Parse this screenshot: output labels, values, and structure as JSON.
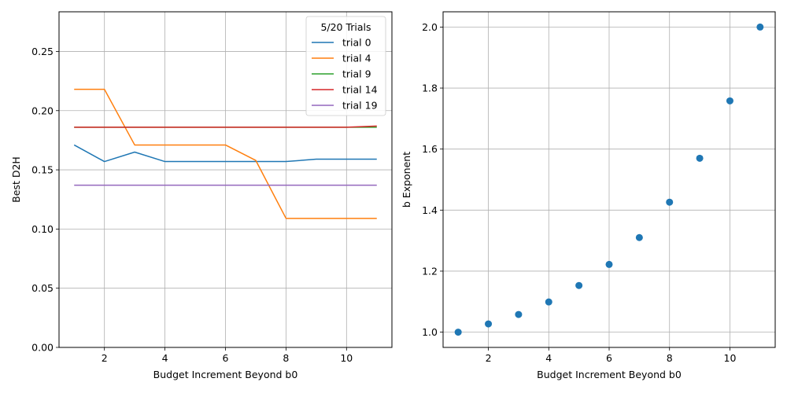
{
  "chart_data": [
    {
      "type": "line",
      "xlabel": "Budget Increment Beyond b0",
      "ylabel": "Best D2H",
      "xlim": [
        0.5,
        11.5
      ],
      "ylim": [
        0.0,
        0.2835
      ],
      "xticks": [
        2,
        4,
        6,
        8,
        10
      ],
      "yticks": [
        0.0,
        0.05,
        0.1,
        0.15,
        0.2,
        0.25
      ],
      "ytick_labels": [
        "0.00",
        "0.05",
        "0.10",
        "0.15",
        "0.20",
        "0.25"
      ],
      "grid": true,
      "legend": {
        "title": "5/20 Trials",
        "placement": "top-right"
      },
      "x": [
        1,
        2,
        3,
        4,
        5,
        6,
        7,
        8,
        9,
        10,
        11
      ],
      "series": [
        {
          "name": "trial 0",
          "color": "#1f77b4",
          "values": [
            0.171,
            0.157,
            0.165,
            0.157,
            0.157,
            0.157,
            0.157,
            0.157,
            0.159,
            0.159,
            0.159
          ]
        },
        {
          "name": "trial 4",
          "color": "#ff7f0e",
          "values": [
            0.218,
            0.218,
            0.171,
            0.171,
            0.171,
            0.171,
            0.158,
            0.109,
            0.109,
            0.109,
            0.109
          ]
        },
        {
          "name": "trial 9",
          "color": "#2ca02c",
          "values": [
            0.186,
            0.186,
            0.186,
            0.186,
            0.186,
            0.186,
            0.186,
            0.186,
            0.186,
            0.186,
            0.186
          ]
        },
        {
          "name": "trial 14",
          "color": "#d62728",
          "values": [
            0.186,
            0.186,
            0.186,
            0.186,
            0.186,
            0.186,
            0.186,
            0.186,
            0.186,
            0.186,
            0.187
          ]
        },
        {
          "name": "trial 19",
          "color": "#9467bd",
          "values": [
            0.137,
            0.137,
            0.137,
            0.137,
            0.137,
            0.137,
            0.137,
            0.137,
            0.137,
            0.137,
            0.137
          ]
        }
      ]
    },
    {
      "type": "scatter",
      "xlabel": "Budget Increment Beyond b0",
      "ylabel": "b Exponent",
      "xlim": [
        0.5,
        11.5
      ],
      "ylim": [
        0.95,
        2.05
      ],
      "xticks": [
        2,
        4,
        6,
        8,
        10
      ],
      "yticks": [
        1.0,
        1.2,
        1.4,
        1.6,
        1.8,
        2.0
      ],
      "ytick_labels": [
        "1.0",
        "1.2",
        "1.4",
        "1.6",
        "1.8",
        "2.0"
      ],
      "grid": true,
      "color": "#1f77b4",
      "x": [
        1,
        2,
        3,
        4,
        5,
        6,
        7,
        8,
        9,
        10,
        11
      ],
      "values": [
        1.0,
        1.027,
        1.058,
        1.099,
        1.153,
        1.222,
        1.31,
        1.426,
        1.57,
        1.758,
        2.0
      ]
    }
  ]
}
